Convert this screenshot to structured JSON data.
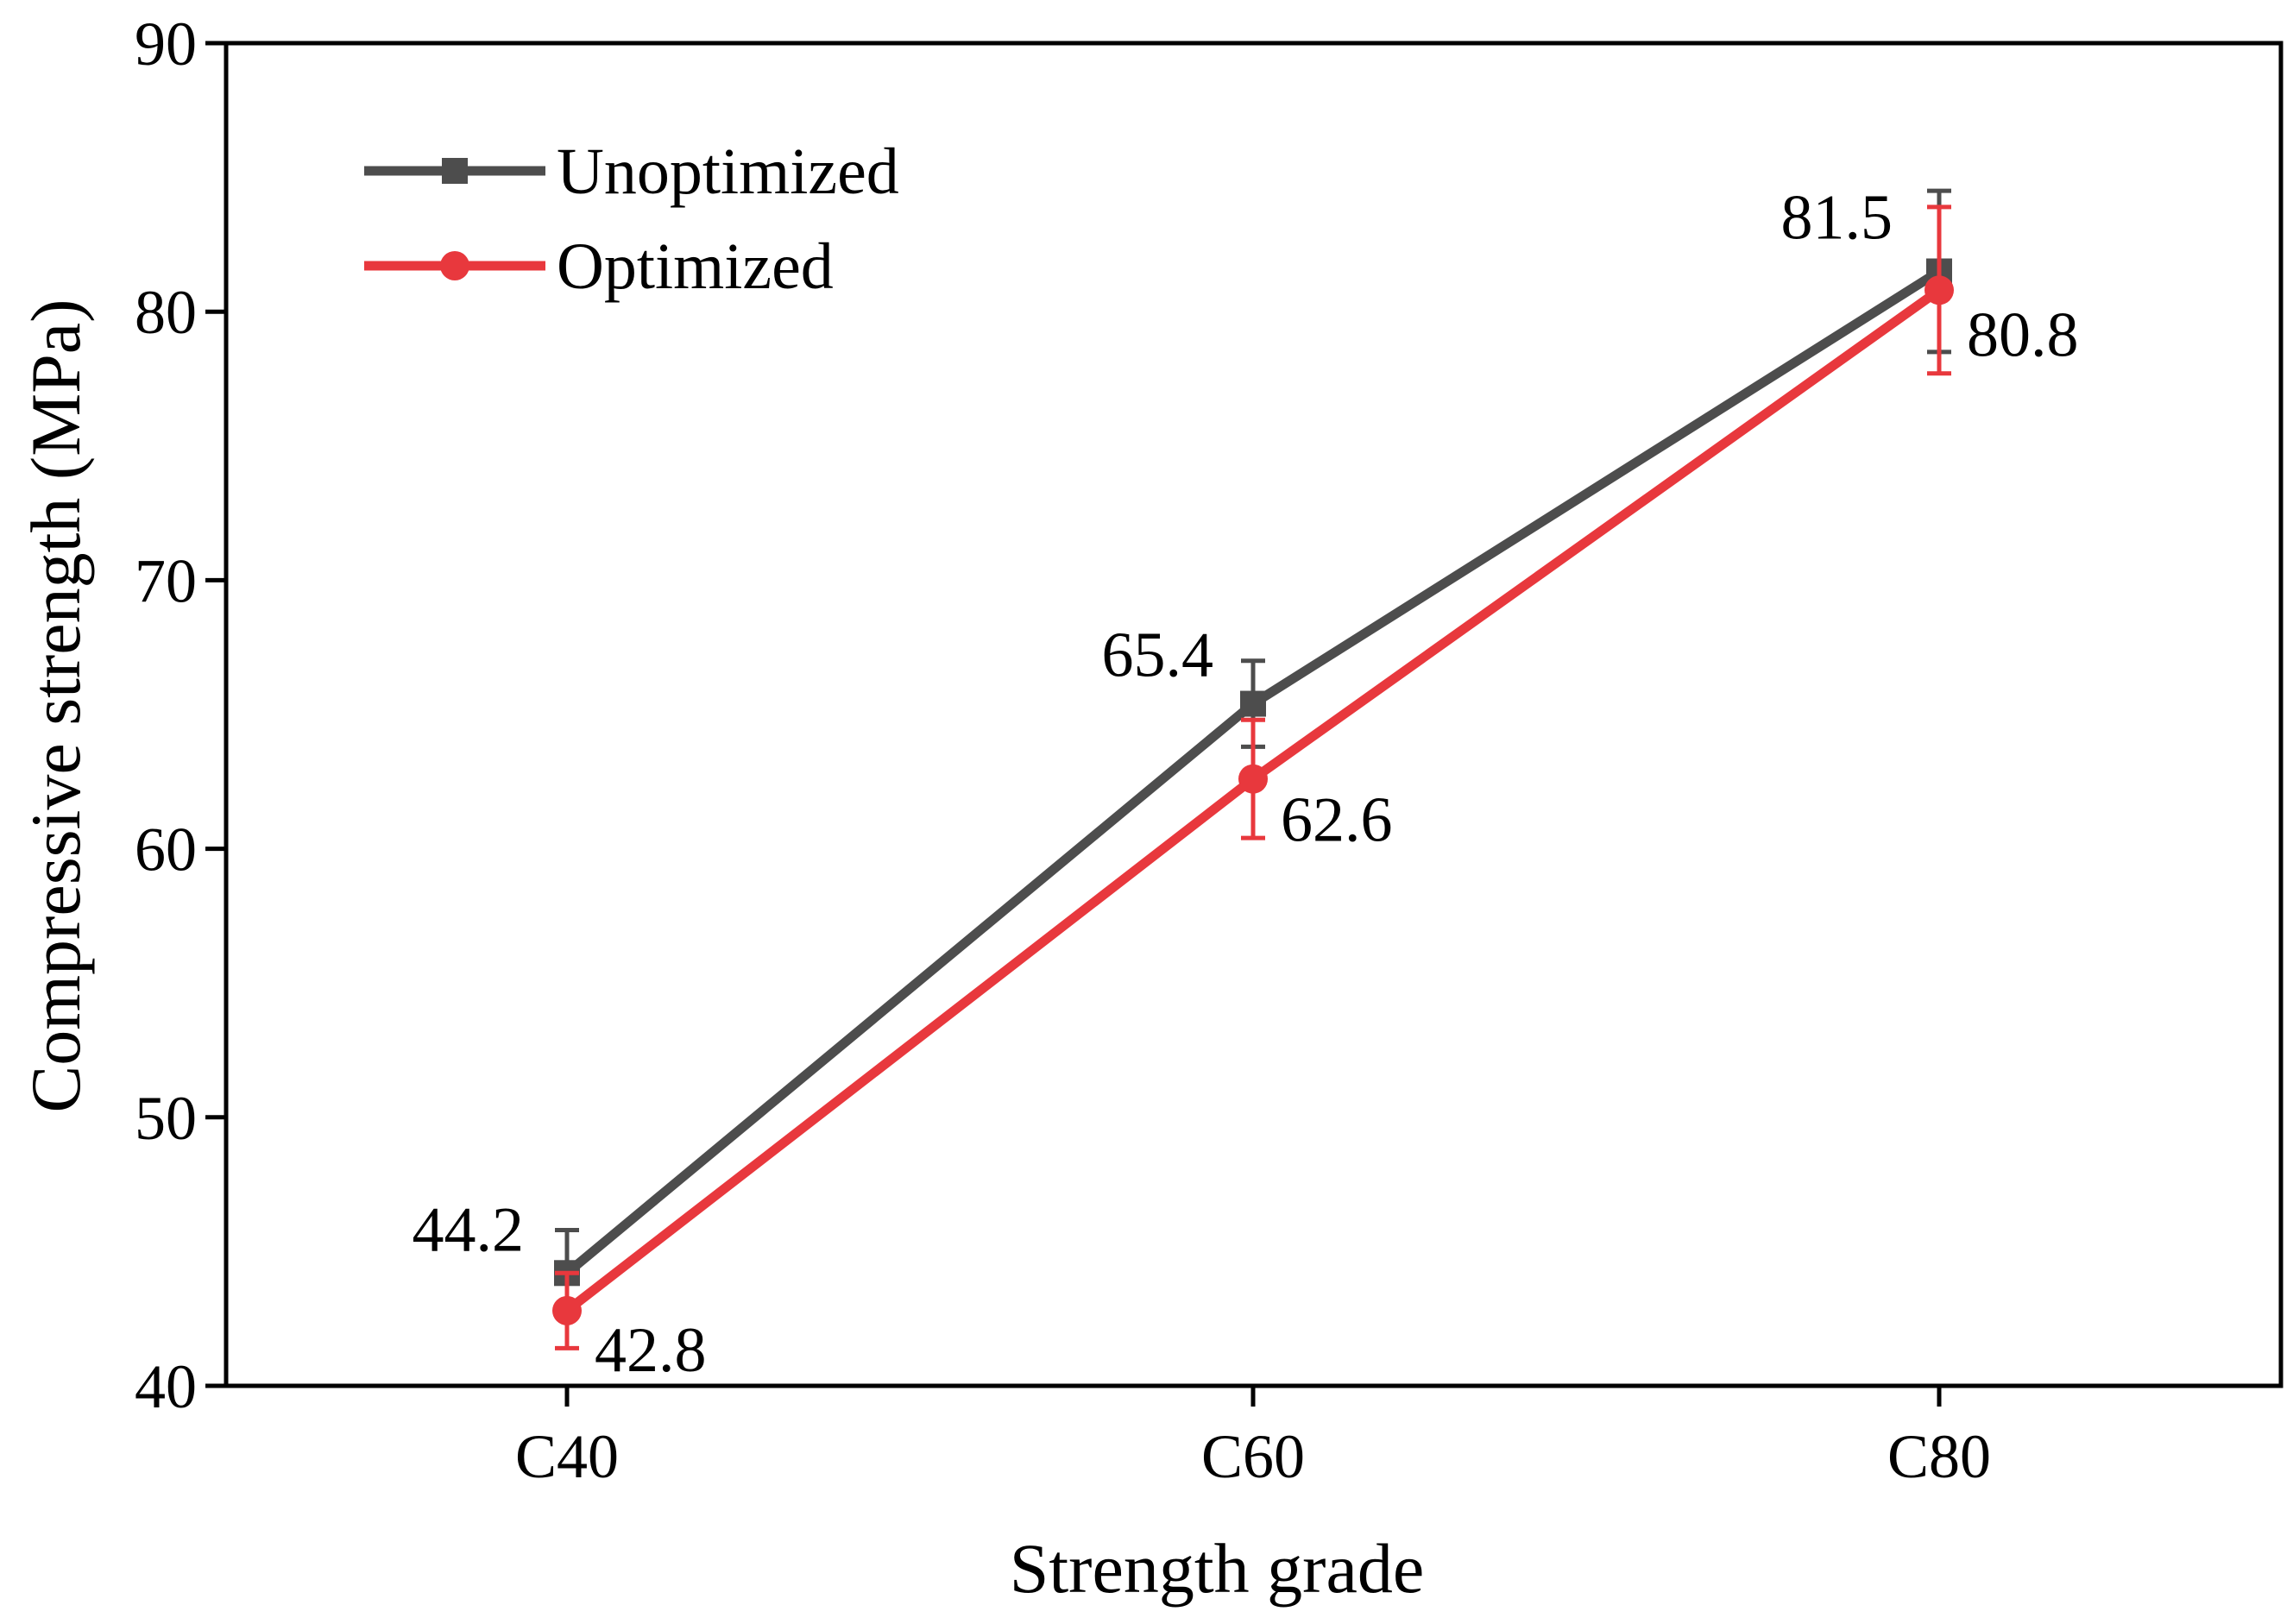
{
  "chart_data": {
    "type": "line",
    "xlabel": "Strength grade",
    "ylabel": "Compressive strength (MPa)",
    "categories": [
      "C40",
      "C60",
      "C80"
    ],
    "ylim": [
      40,
      90
    ],
    "yticks": [
      40,
      50,
      60,
      70,
      80,
      90
    ],
    "grid": false,
    "legend_position": "top-left",
    "series": [
      {
        "name": "Unoptimized",
        "color": "#4d4d4d",
        "marker": "square",
        "values": [
          44.2,
          65.4,
          81.5
        ],
        "error": [
          1.6,
          1.6,
          3.0
        ],
        "labels": [
          "44.2",
          "65.4",
          "81.5"
        ]
      },
      {
        "name": "Optimized",
        "color": "#e8383d",
        "marker": "circle",
        "values": [
          42.8,
          62.6,
          80.8
        ],
        "error": [
          1.4,
          2.2,
          3.1
        ],
        "labels": [
          "42.8",
          "62.6",
          "80.8"
        ]
      }
    ]
  }
}
